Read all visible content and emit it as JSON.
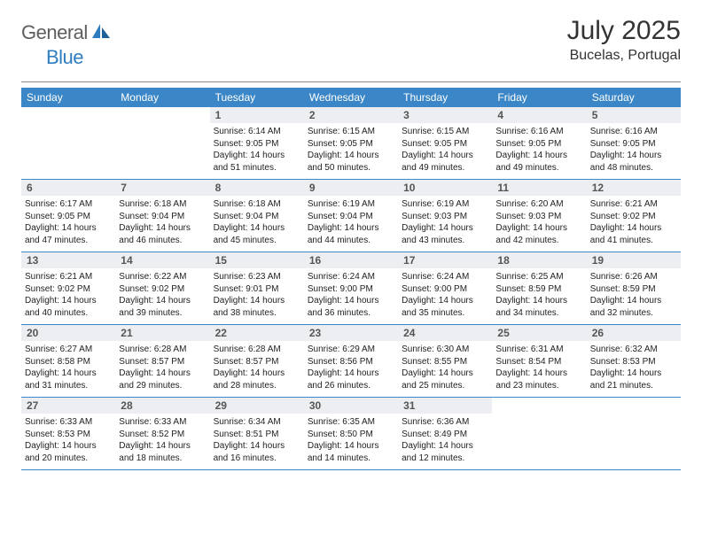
{
  "brand": {
    "part1": "General",
    "part2": "Blue"
  },
  "title": {
    "month": "July 2025",
    "location": "Bucelas, Portugal"
  },
  "colors": {
    "header_bg": "#3b86c6",
    "daynum_bg": "#eceef1",
    "rule": "#3b86c6",
    "logo_gray": "#5e5e5e",
    "logo_blue": "#2f7dc1"
  },
  "weekdays": [
    "Sunday",
    "Monday",
    "Tuesday",
    "Wednesday",
    "Thursday",
    "Friday",
    "Saturday"
  ],
  "layout": {
    "first_weekday_index": 2,
    "days_in_month": 31,
    "rows": 5,
    "cols": 7
  },
  "days": {
    "1": {
      "sunrise": "6:14 AM",
      "sunset": "9:05 PM",
      "daylight_h": 14,
      "daylight_m": 51
    },
    "2": {
      "sunrise": "6:15 AM",
      "sunset": "9:05 PM",
      "daylight_h": 14,
      "daylight_m": 50
    },
    "3": {
      "sunrise": "6:15 AM",
      "sunset": "9:05 PM",
      "daylight_h": 14,
      "daylight_m": 49
    },
    "4": {
      "sunrise": "6:16 AM",
      "sunset": "9:05 PM",
      "daylight_h": 14,
      "daylight_m": 49
    },
    "5": {
      "sunrise": "6:16 AM",
      "sunset": "9:05 PM",
      "daylight_h": 14,
      "daylight_m": 48
    },
    "6": {
      "sunrise": "6:17 AM",
      "sunset": "9:05 PM",
      "daylight_h": 14,
      "daylight_m": 47
    },
    "7": {
      "sunrise": "6:18 AM",
      "sunset": "9:04 PM",
      "daylight_h": 14,
      "daylight_m": 46
    },
    "8": {
      "sunrise": "6:18 AM",
      "sunset": "9:04 PM",
      "daylight_h": 14,
      "daylight_m": 45
    },
    "9": {
      "sunrise": "6:19 AM",
      "sunset": "9:04 PM",
      "daylight_h": 14,
      "daylight_m": 44
    },
    "10": {
      "sunrise": "6:19 AM",
      "sunset": "9:03 PM",
      "daylight_h": 14,
      "daylight_m": 43
    },
    "11": {
      "sunrise": "6:20 AM",
      "sunset": "9:03 PM",
      "daylight_h": 14,
      "daylight_m": 42
    },
    "12": {
      "sunrise": "6:21 AM",
      "sunset": "9:02 PM",
      "daylight_h": 14,
      "daylight_m": 41
    },
    "13": {
      "sunrise": "6:21 AM",
      "sunset": "9:02 PM",
      "daylight_h": 14,
      "daylight_m": 40
    },
    "14": {
      "sunrise": "6:22 AM",
      "sunset": "9:02 PM",
      "daylight_h": 14,
      "daylight_m": 39
    },
    "15": {
      "sunrise": "6:23 AM",
      "sunset": "9:01 PM",
      "daylight_h": 14,
      "daylight_m": 38
    },
    "16": {
      "sunrise": "6:24 AM",
      "sunset": "9:00 PM",
      "daylight_h": 14,
      "daylight_m": 36
    },
    "17": {
      "sunrise": "6:24 AM",
      "sunset": "9:00 PM",
      "daylight_h": 14,
      "daylight_m": 35
    },
    "18": {
      "sunrise": "6:25 AM",
      "sunset": "8:59 PM",
      "daylight_h": 14,
      "daylight_m": 34
    },
    "19": {
      "sunrise": "6:26 AM",
      "sunset": "8:59 PM",
      "daylight_h": 14,
      "daylight_m": 32
    },
    "20": {
      "sunrise": "6:27 AM",
      "sunset": "8:58 PM",
      "daylight_h": 14,
      "daylight_m": 31
    },
    "21": {
      "sunrise": "6:28 AM",
      "sunset": "8:57 PM",
      "daylight_h": 14,
      "daylight_m": 29
    },
    "22": {
      "sunrise": "6:28 AM",
      "sunset": "8:57 PM",
      "daylight_h": 14,
      "daylight_m": 28
    },
    "23": {
      "sunrise": "6:29 AM",
      "sunset": "8:56 PM",
      "daylight_h": 14,
      "daylight_m": 26
    },
    "24": {
      "sunrise": "6:30 AM",
      "sunset": "8:55 PM",
      "daylight_h": 14,
      "daylight_m": 25
    },
    "25": {
      "sunrise": "6:31 AM",
      "sunset": "8:54 PM",
      "daylight_h": 14,
      "daylight_m": 23
    },
    "26": {
      "sunrise": "6:32 AM",
      "sunset": "8:53 PM",
      "daylight_h": 14,
      "daylight_m": 21
    },
    "27": {
      "sunrise": "6:33 AM",
      "sunset": "8:53 PM",
      "daylight_h": 14,
      "daylight_m": 20
    },
    "28": {
      "sunrise": "6:33 AM",
      "sunset": "8:52 PM",
      "daylight_h": 14,
      "daylight_m": 18
    },
    "29": {
      "sunrise": "6:34 AM",
      "sunset": "8:51 PM",
      "daylight_h": 14,
      "daylight_m": 16
    },
    "30": {
      "sunrise": "6:35 AM",
      "sunset": "8:50 PM",
      "daylight_h": 14,
      "daylight_m": 14
    },
    "31": {
      "sunrise": "6:36 AM",
      "sunset": "8:49 PM",
      "daylight_h": 14,
      "daylight_m": 12
    }
  }
}
